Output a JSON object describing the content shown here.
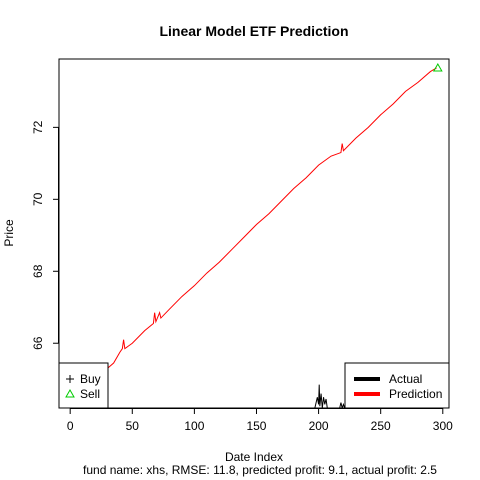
{
  "chart_data": {
    "type": "line",
    "title": "Linear Model ETF Prediction",
    "xlabel": "Date Index",
    "ylabel": "Price",
    "subtitle": "fund name: xhs, RMSE: 11.8, predicted profit: 9.1, actual profit: 2.5",
    "xlim": [
      -9,
      305
    ],
    "ylim": [
      64.2,
      73.9
    ],
    "x_ticks": [
      0,
      50,
      100,
      150,
      200,
      250,
      300
    ],
    "y_ticks": [
      66,
      68,
      70,
      72
    ],
    "grid": false,
    "series": [
      {
        "name": "Actual",
        "color": "#000000",
        "points": [
          [
            197,
            64.2
          ],
          [
            198,
            64.35
          ],
          [
            199,
            64.5
          ],
          [
            200,
            64.3
          ],
          [
            200.5,
            64.85
          ],
          [
            201,
            64.25
          ],
          [
            202,
            64.6
          ],
          [
            203,
            64.2
          ],
          [
            204,
            64.5
          ],
          [
            205,
            64.3
          ],
          [
            206,
            64.45
          ],
          [
            207,
            64.2
          ],
          [
            217,
            64.2
          ],
          [
            218,
            64.35
          ],
          [
            219,
            64.2
          ],
          [
            220,
            64.3
          ],
          [
            221,
            64.2
          ]
        ]
      },
      {
        "name": "Prediction",
        "color": "#ff0000",
        "points": [
          [
            30,
            65.3
          ],
          [
            35,
            65.45
          ],
          [
            40,
            65.75
          ],
          [
            42,
            65.85
          ],
          [
            43,
            66.1
          ],
          [
            44,
            65.85
          ],
          [
            50,
            66.0
          ],
          [
            60,
            66.35
          ],
          [
            67,
            66.55
          ],
          [
            68,
            66.85
          ],
          [
            69,
            66.6
          ],
          [
            72,
            66.85
          ],
          [
            73,
            66.7
          ],
          [
            80,
            66.95
          ],
          [
            90,
            67.3
          ],
          [
            100,
            67.6
          ],
          [
            110,
            67.95
          ],
          [
            120,
            68.25
          ],
          [
            130,
            68.6
          ],
          [
            140,
            68.95
          ],
          [
            150,
            69.3
          ],
          [
            160,
            69.6
          ],
          [
            170,
            69.95
          ],
          [
            180,
            70.3
          ],
          [
            190,
            70.6
          ],
          [
            200,
            70.95
          ],
          [
            210,
            71.2
          ],
          [
            218,
            71.3
          ],
          [
            219,
            71.55
          ],
          [
            220,
            71.35
          ],
          [
            230,
            71.7
          ],
          [
            240,
            72.0
          ],
          [
            250,
            72.35
          ],
          [
            260,
            72.65
          ],
          [
            270,
            73.0
          ],
          [
            280,
            73.25
          ],
          [
            290,
            73.55
          ],
          [
            295,
            73.65
          ]
        ]
      }
    ],
    "markers": [
      {
        "name": "Sell",
        "shape": "triangle",
        "color": "#00cc00",
        "x": 296,
        "y": 73.65
      }
    ],
    "legends": [
      {
        "placement": "bottom-left",
        "entries": [
          {
            "label": "Buy",
            "symbol": "plus",
            "color": "#000000"
          },
          {
            "label": "Sell",
            "symbol": "triangle",
            "color": "#00cc00"
          }
        ]
      },
      {
        "placement": "bottom-right",
        "entries": [
          {
            "label": "Actual",
            "symbol": "line",
            "color": "#000000"
          },
          {
            "label": "Prediction",
            "symbol": "line",
            "color": "#ff0000"
          }
        ]
      }
    ]
  }
}
